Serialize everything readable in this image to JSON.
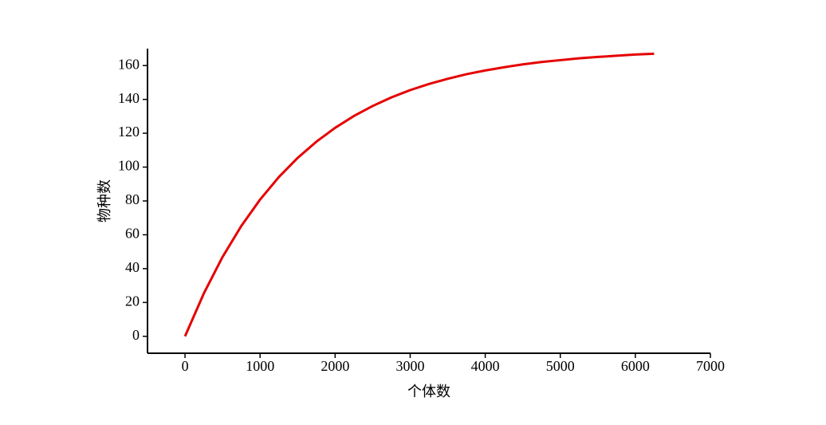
{
  "chart_data": {
    "type": "line",
    "x_label": "个体数",
    "y_label": "物种数",
    "x": [
      0,
      250,
      500,
      750,
      1000,
      1250,
      1500,
      1750,
      2000,
      2250,
      2500,
      2750,
      3000,
      3250,
      3500,
      3750,
      4000,
      4250,
      4500,
      4750,
      5000,
      5250,
      5500,
      5750,
      6000,
      6250
    ],
    "series": [
      {
        "color": "#e60000",
        "values": [
          0,
          25.3,
          46.9,
          65.2,
          80.8,
          94.1,
          105.4,
          115.0,
          123.2,
          130.2,
          136.1,
          141.2,
          145.5,
          149.1,
          152.2,
          154.9,
          157.1,
          159.0,
          160.7,
          162.1,
          163.2,
          164.3,
          165.1,
          165.8,
          166.5,
          167.0
        ]
      }
    ],
    "xlim": [
      -500,
      7000
    ],
    "xticks": [
      0,
      1000,
      2000,
      3000,
      4000,
      5000,
      6000,
      7000
    ],
    "ylim": [
      -10,
      170
    ],
    "yticks": [
      0,
      20,
      40,
      60,
      80,
      100,
      120,
      140,
      160
    ],
    "grid": false
  }
}
